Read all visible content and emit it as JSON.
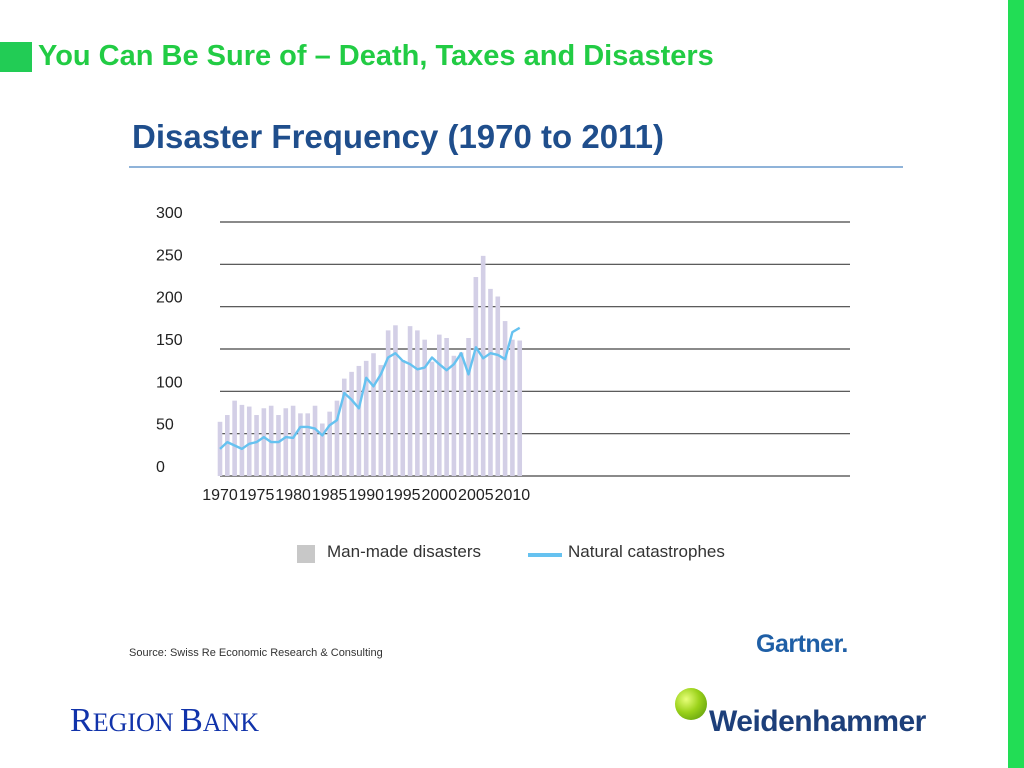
{
  "slide": {
    "title": "You Can Be Sure of – Death, Taxes and Disasters",
    "accent_color": "#22cc44"
  },
  "chart_data": {
    "type": "bar",
    "title": "Disaster Frequency (1970 to 2011)",
    "xlabel": "",
    "ylabel": "",
    "ylim": [
      0,
      300
    ],
    "yticks": [
      0,
      50,
      100,
      150,
      200,
      250,
      300
    ],
    "xticks": [
      1970,
      1975,
      1980,
      1985,
      1990,
      1995,
      2000,
      2005,
      2010
    ],
    "grid": true,
    "legend_position": "bottom",
    "x": [
      1970,
      1971,
      1972,
      1973,
      1974,
      1975,
      1976,
      1977,
      1978,
      1979,
      1980,
      1981,
      1982,
      1983,
      1984,
      1985,
      1986,
      1987,
      1988,
      1989,
      1990,
      1991,
      1992,
      1993,
      1994,
      1995,
      1996,
      1997,
      1998,
      1999,
      2000,
      2001,
      2002,
      2003,
      2004,
      2005,
      2006,
      2007,
      2008,
      2009,
      2010,
      2011
    ],
    "series": [
      {
        "name": "Man-made disasters",
        "type": "bar",
        "color": "#d3cfe6",
        "values": [
          64,
          72,
          89,
          84,
          82,
          72,
          80,
          83,
          72,
          80,
          83,
          74,
          74,
          83,
          62,
          76,
          89,
          115,
          123,
          130,
          136,
          145,
          131,
          172,
          178,
          137,
          177,
          172,
          161,
          135,
          167,
          163,
          142,
          146,
          163,
          235,
          260,
          221,
          212,
          183,
          161,
          160
        ]
      },
      {
        "name": "Natural catastrophes",
        "type": "line",
        "color": "#66c2f0",
        "values": [
          32,
          40,
          36,
          32,
          38,
          40,
          46,
          40,
          40,
          46,
          45,
          58,
          58,
          56,
          48,
          60,
          66,
          98,
          90,
          80,
          116,
          106,
          120,
          140,
          145,
          136,
          132,
          126,
          128,
          140,
          132,
          125,
          132,
          145,
          120,
          152,
          139,
          145,
          143,
          138,
          170,
          175
        ]
      }
    ]
  },
  "source": "Source: Swiss Re Economic Research & Consulting",
  "logos": {
    "gartner": "Gartner.",
    "region_bank_first": "R",
    "region_bank_rest1": "EGION ",
    "region_bank_second": "B",
    "region_bank_rest2": "ANK",
    "weidenhammer": "Weidenhammer"
  }
}
